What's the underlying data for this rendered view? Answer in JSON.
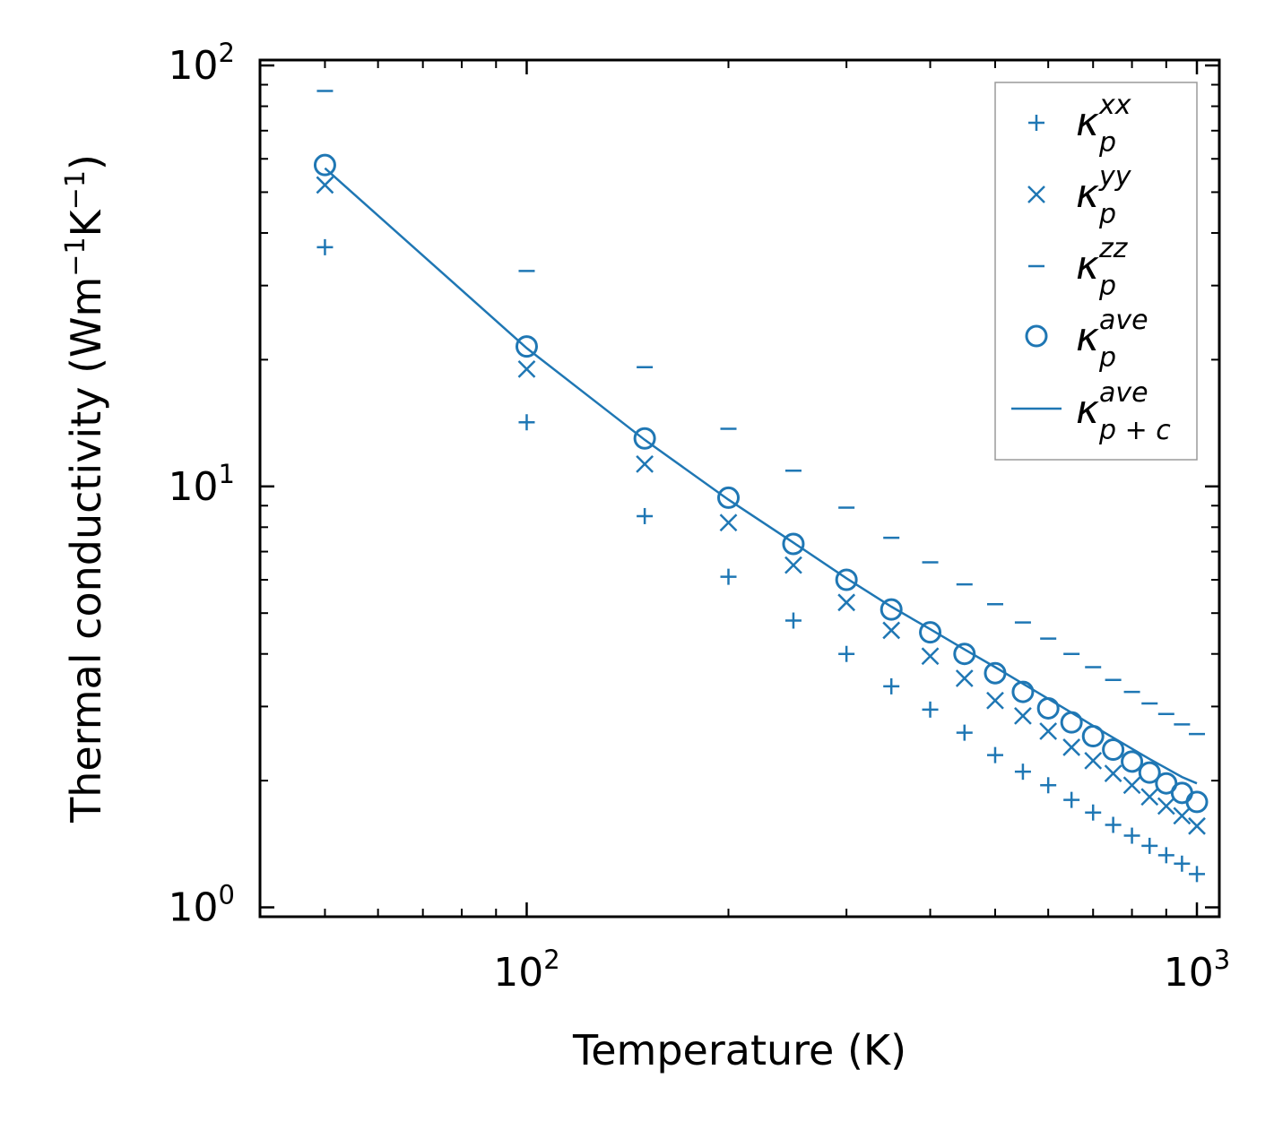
{
  "chart_data": {
    "type": "scatter",
    "xscale": "log",
    "yscale": "log",
    "xlim": [
      40,
      1080
    ],
    "ylim": [
      0.95,
      103
    ],
    "xlabel": "Temperature (K)",
    "ylabel": {
      "main": "Thermal conductivity (Wm",
      "sup1": "−1",
      "mid": "K",
      "sup2": "−1",
      "end": ")"
    },
    "x_ticks": [
      {
        "base": "10",
        "exp": "2",
        "value": 100
      },
      {
        "base": "10",
        "exp": "3",
        "value": 1000
      }
    ],
    "y_ticks": [
      {
        "base": "10",
        "exp": "0",
        "value": 1
      },
      {
        "base": "10",
        "exp": "1",
        "value": 10
      },
      {
        "base": "10",
        "exp": "2",
        "value": 100
      }
    ],
    "x": [
      50,
      100,
      150,
      200,
      250,
      300,
      350,
      400,
      450,
      500,
      550,
      600,
      650,
      700,
      750,
      800,
      850,
      900,
      950,
      1000
    ],
    "color": "#1f77b4",
    "series": [
      {
        "name": "kxx",
        "marker": "plus",
        "legend": {
          "base": "κ",
          "sub": "p",
          "sup": "xx"
        },
        "values": [
          37,
          14.2,
          8.5,
          6.1,
          4.8,
          4.0,
          3.35,
          2.95,
          2.6,
          2.3,
          2.1,
          1.95,
          1.8,
          1.68,
          1.57,
          1.48,
          1.4,
          1.33,
          1.27,
          1.2
        ]
      },
      {
        "name": "kyy",
        "marker": "x",
        "legend": {
          "base": "κ",
          "sub": "p",
          "sup": "yy"
        },
        "values": [
          52,
          19.0,
          11.3,
          8.2,
          6.5,
          5.3,
          4.55,
          3.95,
          3.5,
          3.1,
          2.85,
          2.62,
          2.4,
          2.23,
          2.08,
          1.95,
          1.83,
          1.74,
          1.65,
          1.56
        ]
      },
      {
        "name": "kzz",
        "marker": "hline",
        "legend": {
          "base": "κ",
          "sub": "p",
          "sup": "zz"
        },
        "values": [
          87,
          32.5,
          19.2,
          13.7,
          10.9,
          8.9,
          7.55,
          6.6,
          5.85,
          5.25,
          4.75,
          4.35,
          4.0,
          3.72,
          3.47,
          3.25,
          3.05,
          2.88,
          2.72,
          2.58
        ]
      },
      {
        "name": "kave",
        "marker": "circle",
        "legend": {
          "base": "κ",
          "sub": "p",
          "sup": "ave"
        },
        "values": [
          58,
          21.5,
          13.0,
          9.4,
          7.3,
          6.0,
          5.1,
          4.5,
          4.0,
          3.6,
          3.25,
          2.97,
          2.75,
          2.55,
          2.37,
          2.22,
          2.09,
          1.97,
          1.87,
          1.78
        ]
      },
      {
        "name": "kave_pc",
        "marker": "line",
        "legend": {
          "base": "κ",
          "sub": "p + c",
          "sup": "ave"
        },
        "values": [
          57,
          21.3,
          12.9,
          9.3,
          7.35,
          6.05,
          5.18,
          4.58,
          4.1,
          3.72,
          3.4,
          3.13,
          2.9,
          2.7,
          2.53,
          2.38,
          2.25,
          2.14,
          2.04,
          1.97
        ]
      }
    ]
  }
}
